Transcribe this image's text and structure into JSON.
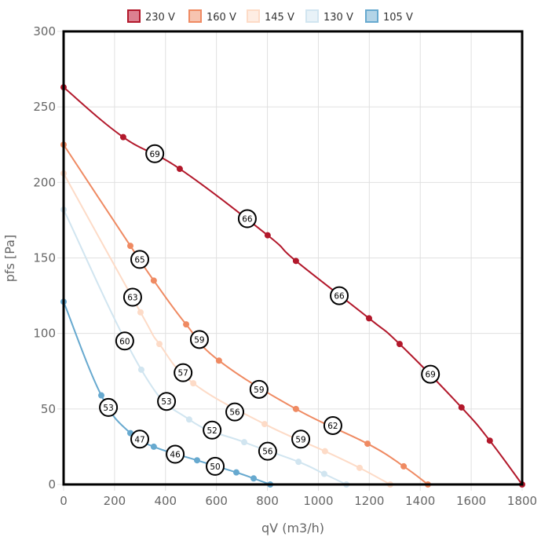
{
  "chart_data": {
    "type": "line",
    "title": "",
    "xlabel": "qV (m3/h)",
    "ylabel": "pfs [Pa]",
    "xlim": [
      0,
      1800
    ],
    "ylim": [
      0,
      300
    ],
    "xticks": [
      0,
      200,
      400,
      600,
      800,
      1000,
      1200,
      1400,
      1600,
      1800
    ],
    "yticks": [
      0,
      50,
      100,
      150,
      200,
      250,
      300
    ],
    "grid": true,
    "legend_position": "top-center",
    "series": [
      {
        "name": "230 V",
        "color": "#b2182b",
        "fill": "#dc8090",
        "points": [
          [
            0,
            263
          ],
          [
            234,
            230
          ],
          [
            456,
            209
          ],
          [
            801,
            165
          ],
          [
            912,
            148
          ],
          [
            1199,
            110
          ],
          [
            1319,
            93
          ],
          [
            1562,
            51
          ],
          [
            1673,
            29
          ],
          [
            1800,
            0
          ]
        ],
        "labels": [
          {
            "x": 358,
            "y": 219,
            "text": "69"
          },
          {
            "x": 721,
            "y": 176,
            "text": "66"
          },
          {
            "x": 1082,
            "y": 125,
            "text": "66"
          },
          {
            "x": 1440,
            "y": 73,
            "text": "69"
          }
        ]
      },
      {
        "name": "160 V",
        "color": "#ef8a62",
        "fill": "#f7c4b0",
        "points": [
          [
            0,
            225
          ],
          [
            262,
            158
          ],
          [
            354,
            135
          ],
          [
            481,
            106
          ],
          [
            610,
            82
          ],
          [
            912,
            50
          ],
          [
            1193,
            27
          ],
          [
            1335,
            12
          ],
          [
            1430,
            0
          ]
        ],
        "labels": [
          {
            "x": 299,
            "y": 149,
            "text": "65"
          },
          {
            "x": 533,
            "y": 96,
            "text": "59"
          },
          {
            "x": 767,
            "y": 63,
            "text": "59"
          },
          {
            "x": 1057,
            "y": 39,
            "text": "62"
          }
        ]
      },
      {
        "name": "145 V",
        "color": "#fddbc7",
        "fill": "#feede3",
        "points": [
          [
            0,
            206
          ],
          [
            302,
            114
          ],
          [
            376,
            93
          ],
          [
            509,
            67
          ],
          [
            789,
            40
          ],
          [
            1026,
            22
          ],
          [
            1162,
            11
          ],
          [
            1282,
            0
          ]
        ],
        "labels": [
          {
            "x": 271,
            "y": 124,
            "text": "63"
          },
          {
            "x": 469,
            "y": 74,
            "text": "57"
          },
          {
            "x": 672,
            "y": 48,
            "text": "56"
          },
          {
            "x": 931,
            "y": 30,
            "text": "59"
          }
        ]
      },
      {
        "name": "130 V",
        "color": "#d1e5f0",
        "fill": "#e8f2f8",
        "points": [
          [
            0,
            182
          ],
          [
            305,
            76
          ],
          [
            493,
            43
          ],
          [
            709,
            28
          ],
          [
            922,
            15
          ],
          [
            1023,
            7
          ],
          [
            1110,
            0
          ]
        ],
        "labels": [
          {
            "x": 240,
            "y": 95,
            "text": "60"
          },
          {
            "x": 404,
            "y": 55,
            "text": "53"
          },
          {
            "x": 583,
            "y": 36,
            "text": "52"
          },
          {
            "x": 801,
            "y": 22,
            "text": "56"
          }
        ]
      },
      {
        "name": "105 V",
        "color": "#67a9cf",
        "fill": "#b3d4e7",
        "points": [
          [
            0,
            121
          ],
          [
            148,
            59
          ],
          [
            262,
            34
          ],
          [
            354,
            25
          ],
          [
            524,
            16
          ],
          [
            678,
            8
          ],
          [
            746,
            4
          ],
          [
            811,
            0
          ]
        ],
        "labels": [
          {
            "x": 176,
            "y": 51,
            "text": "53"
          },
          {
            "x": 299,
            "y": 30,
            "text": "47"
          },
          {
            "x": 438,
            "y": 20,
            "text": "46"
          },
          {
            "x": 595,
            "y": 12,
            "text": "50"
          }
        ]
      }
    ]
  }
}
